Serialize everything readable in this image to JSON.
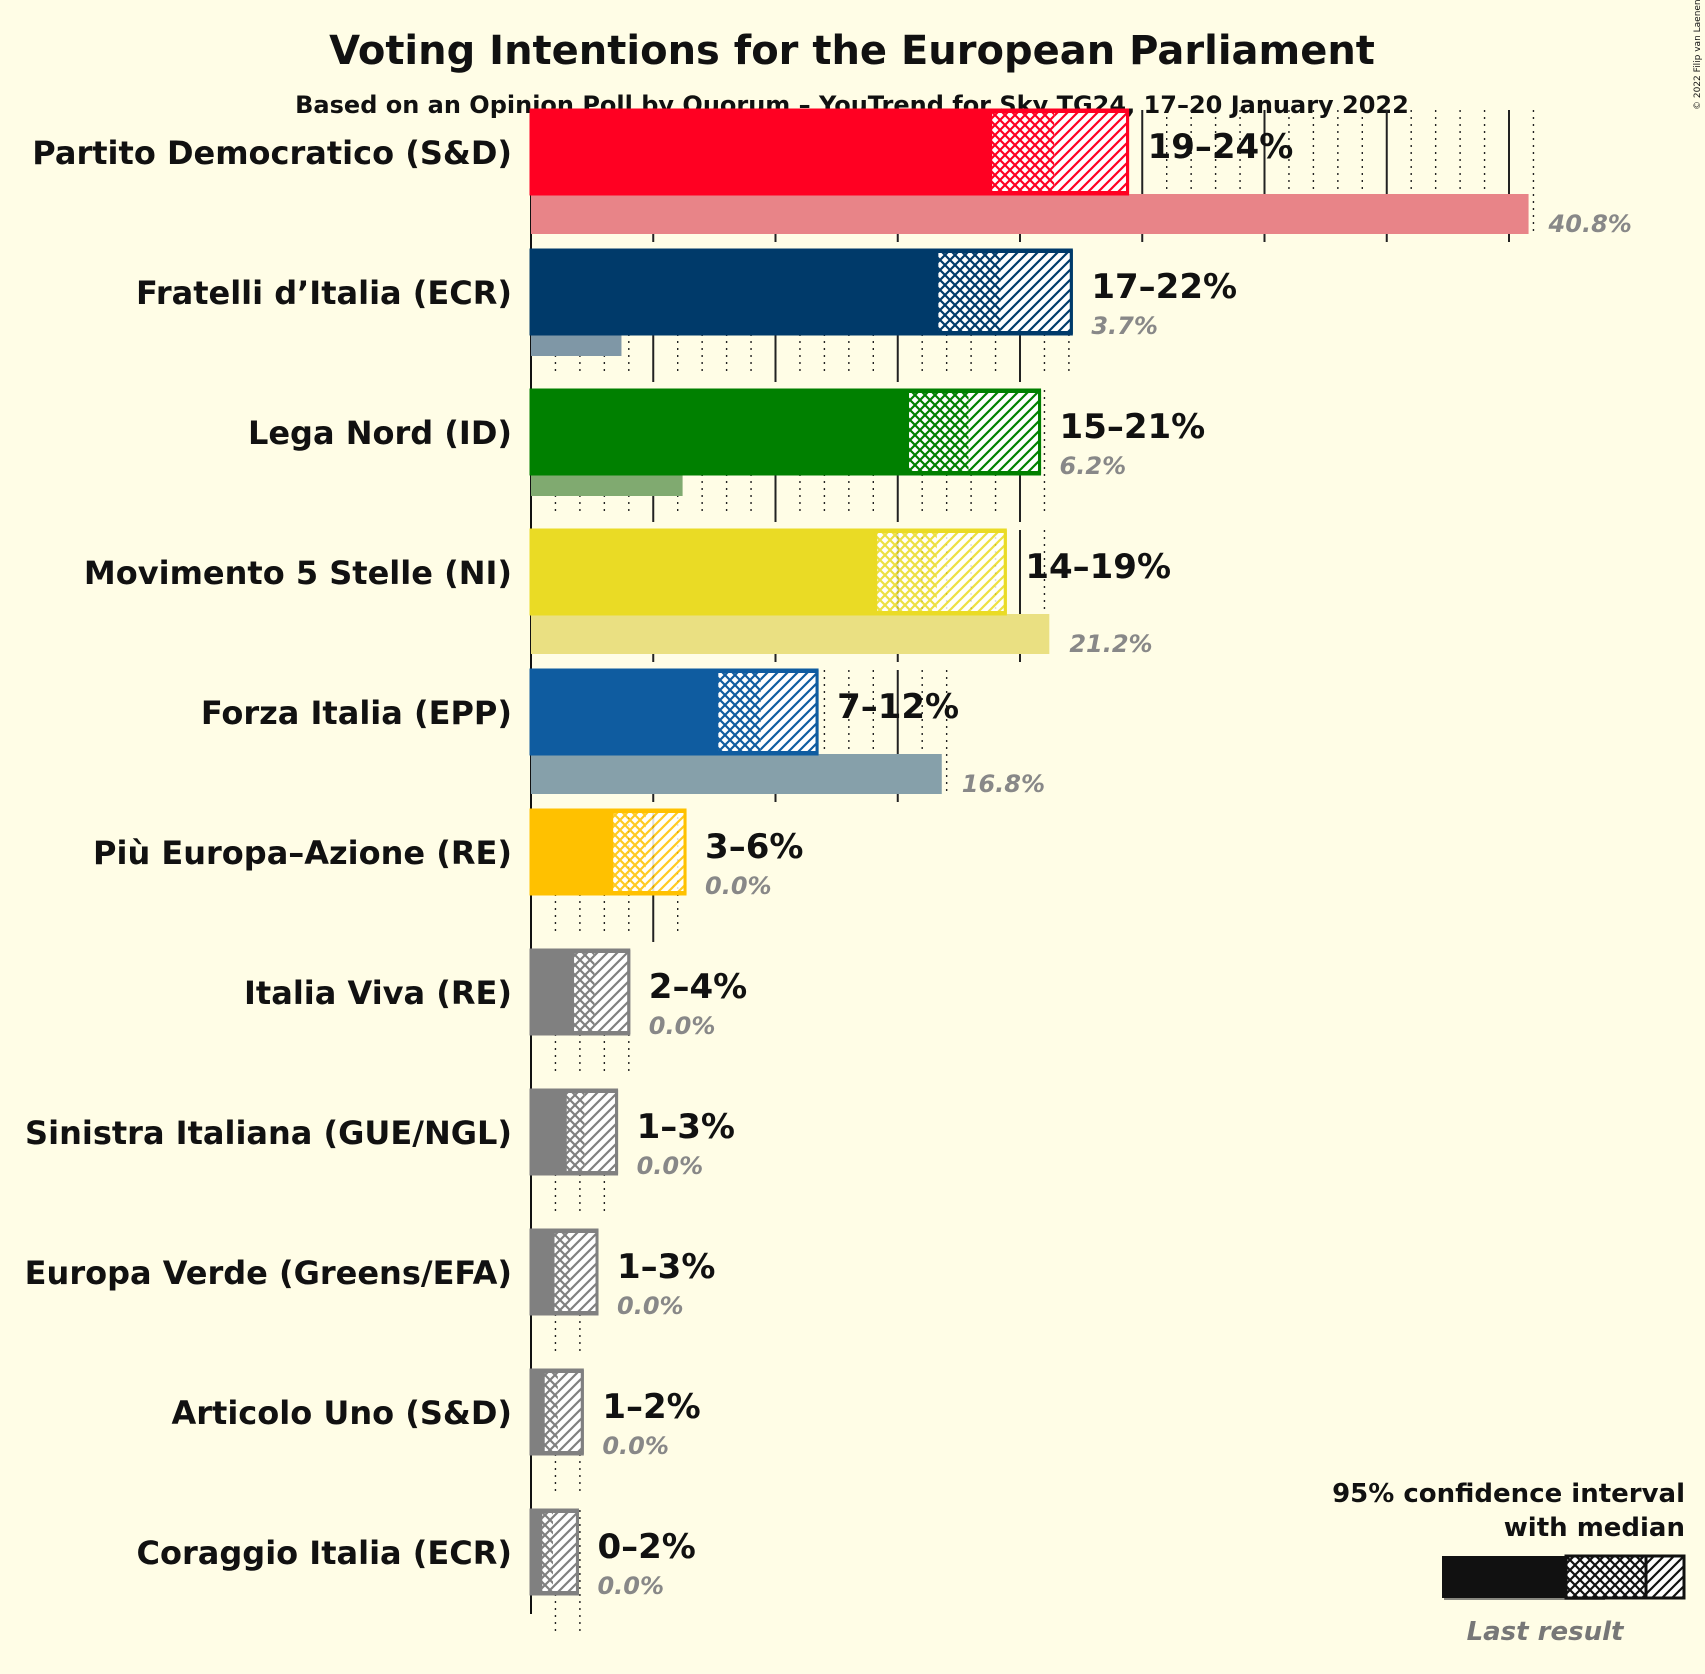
{
  "title": "Voting Intentions for the European Parliament",
  "subtitle": "Based on an Opinion Poll by Quorum – YouTrend for Sky TG24, 17–20 January 2022",
  "copyright": "© 2022 Filip van Laenen",
  "legend": {
    "title_line1": "95% confidence interval",
    "title_line2": "with median",
    "last_result": "Last result"
  },
  "chart_data": {
    "type": "bar",
    "orientation": "horizontal",
    "unit": "%",
    "xlim": [
      0,
      42
    ],
    "grid": true,
    "legend_position": "bottom-right",
    "parties": [
      {
        "name": "Partito Democratico (S&D)",
        "low": 18.8,
        "median": 21.4,
        "high": 24.4,
        "range_label": "19–24%",
        "last": 40.8,
        "last_label": "40.8%",
        "color": "#FF0022",
        "last_color": "#E88488",
        "light": false
      },
      {
        "name": "Fratelli d’Italia (ECR)",
        "low": 16.6,
        "median": 19.2,
        "high": 22.1,
        "range_label": "17–22%",
        "last": 3.7,
        "last_label": "3.7%",
        "color": "#003A6A",
        "last_color": "#7F97A6",
        "light": false
      },
      {
        "name": "Lega Nord (ID)",
        "low": 15.4,
        "median": 17.9,
        "high": 20.8,
        "range_label": "15–21%",
        "last": 6.2,
        "last_label": "6.2%",
        "color": "#008000",
        "last_color": "#80AA70",
        "light": false
      },
      {
        "name": "Movimento 5 Stelle (NI)",
        "low": 14.1,
        "median": 16.6,
        "high": 19.4,
        "range_label": "14–19%",
        "last": 21.2,
        "last_label": "21.2%",
        "color": "#EADB25",
        "last_color": "#EAE082",
        "light": true
      },
      {
        "name": "Forza Italia (EPP)",
        "low": 7.6,
        "median": 9.4,
        "high": 11.7,
        "range_label": "7–12%",
        "last": 16.8,
        "last_label": "16.8%",
        "color": "#0F5CA0",
        "last_color": "#86A0AA",
        "light": false
      },
      {
        "name": "Più Europa–Azione (RE)",
        "low": 3.3,
        "median": 4.7,
        "high": 6.3,
        "range_label": "3–6%",
        "last": 0.0,
        "last_label": "0.0%",
        "color": "#FFC100",
        "last_color": "#AAAAAA",
        "light": true
      },
      {
        "name": "Italia Viva (RE)",
        "low": 1.7,
        "median": 2.6,
        "high": 4.0,
        "range_label": "2–4%",
        "last": 0.0,
        "last_label": "0.0%",
        "color": "#808080",
        "last_color": "#AAAAAA",
        "light": false
      },
      {
        "name": "Sinistra Italiana (GUE/NGL)",
        "low": 1.4,
        "median": 2.2,
        "high": 3.5,
        "range_label": "1–3%",
        "last": 0.0,
        "last_label": "0.0%",
        "color": "#808080",
        "last_color": "#AAAAAA",
        "light": false
      },
      {
        "name": "Europa Verde (Greens/EFA)",
        "low": 0.9,
        "median": 1.6,
        "high": 2.7,
        "range_label": "1–3%",
        "last": 0.0,
        "last_label": "0.0%",
        "color": "#808080",
        "last_color": "#AAAAAA",
        "light": false
      },
      {
        "name": "Articolo Uno (S&D)",
        "low": 0.5,
        "median": 1.1,
        "high": 2.1,
        "range_label": "1–2%",
        "last": 0.0,
        "last_label": "0.0%",
        "color": "#808080",
        "last_color": "#AAAAAA",
        "light": false
      },
      {
        "name": "Coraggio Italia (ECR)",
        "low": 0.4,
        "median": 0.9,
        "high": 1.9,
        "range_label": "0–2%",
        "last": 0.0,
        "last_label": "0.0%",
        "color": "#808080",
        "last_color": "#AAAAAA",
        "light": false
      }
    ]
  }
}
